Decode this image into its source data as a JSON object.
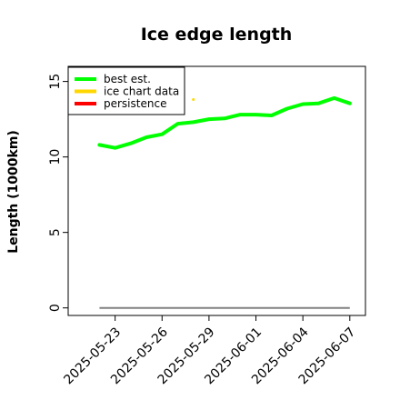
{
  "chart_data": {
    "type": "line",
    "title": "Ice edge length",
    "xlabel": "",
    "ylabel": "Length (1000km)",
    "x_range": [
      "2025-05-20",
      "2025-06-08"
    ],
    "ylim": [
      -0.5,
      16
    ],
    "yticks": [
      0,
      5,
      10,
      15
    ],
    "xticks": [
      "2025-05-23",
      "2025-05-26",
      "2025-05-29",
      "2025-06-01",
      "2025-06-04",
      "2025-06-07"
    ],
    "grid": false,
    "legend_position": "top-left",
    "series": [
      {
        "name": "best est.",
        "color": "#00ff00",
        "x": [
          "2025-05-22",
          "2025-05-23",
          "2025-05-24",
          "2025-05-25",
          "2025-05-26",
          "2025-05-27",
          "2025-05-28",
          "2025-05-29",
          "2025-05-30",
          "2025-05-31",
          "2025-06-01",
          "2025-06-02",
          "2025-06-03",
          "2025-06-04",
          "2025-06-05",
          "2025-06-06",
          "2025-06-07"
        ],
        "values": [
          10.8,
          10.6,
          10.9,
          11.3,
          11.5,
          12.2,
          12.3,
          12.5,
          12.55,
          12.8,
          12.8,
          12.75,
          13.2,
          13.5,
          13.55,
          13.9,
          13.55
        ]
      },
      {
        "name": "ice chart data",
        "color": "#ffd700",
        "x": [
          "2025-05-28"
        ],
        "values": [
          13.8
        ]
      },
      {
        "name": "persistence",
        "color": "#ff0000",
        "x": [],
        "values": []
      }
    ],
    "baseline": {
      "color": "#808080",
      "x": [
        "2025-05-22",
        "2025-06-07"
      ],
      "values": [
        0,
        0
      ]
    }
  }
}
